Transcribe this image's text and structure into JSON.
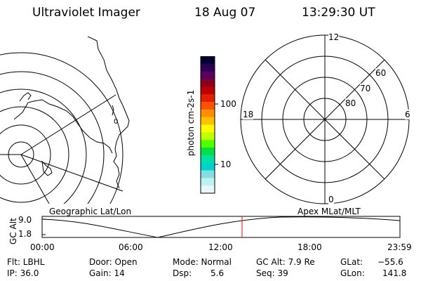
{
  "header": {
    "instrument": "Ultraviolet Imager",
    "date": "18 Aug 07",
    "time": "13:29:30 UT"
  },
  "colorbar": {
    "unit_label": "photon cm-2s-1",
    "ticks": [
      "100",
      "10"
    ],
    "colors": [
      "#000030",
      "#2a0050",
      "#5a0060",
      "#8a0020",
      "#c00000",
      "#e02000",
      "#ff5000",
      "#ff9000",
      "#ffc000",
      "#ffff00",
      "#c0ff00",
      "#50ff00",
      "#00e040",
      "#00e0a0",
      "#00d0d0",
      "#80e0e0",
      "#c0f0f0",
      "#e8f8f8"
    ]
  },
  "polar": {
    "mlt_labels": [
      "12",
      "18",
      "6",
      "0"
    ],
    "lat_labels": [
      "60",
      "70",
      "80"
    ]
  },
  "panel_labels": {
    "left": "Geographic Lat/Lon",
    "right": "Apex MLat/MLT"
  },
  "orbit": {
    "ylabel": "GC Alt",
    "yticks": [
      "9.0",
      "1.8"
    ],
    "xticks": [
      "00:00",
      "06:00",
      "12:00",
      "18:00",
      "23:59"
    ],
    "marker_color": "#ff0000"
  },
  "info": {
    "flt": "Flt: LBHL",
    "ip": "IP: 36.0",
    "door": "Door: Open",
    "gain": "Gain: 14",
    "mode": "Mode: Normal",
    "dsp_label": "Dsp:",
    "dsp_value": "5.6",
    "gcalt": "GC Alt: 7.9 Re",
    "seq": "Seq: 39",
    "glat_label": "GLat:",
    "glat_value": "−55.6",
    "glon_label": "GLon:",
    "glon_value": "141.8"
  }
}
